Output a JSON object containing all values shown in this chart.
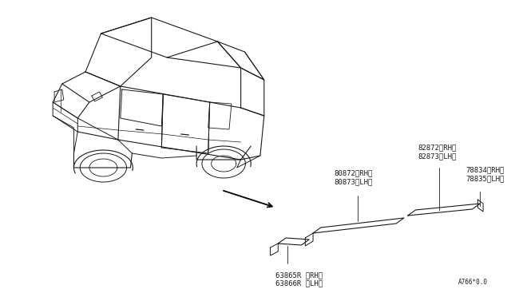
{
  "bg_color": "#ffffff",
  "line_color": "#1a1a1a",
  "text_color": "#1a1a1a",
  "title_text": "A766*0.0",
  "label_82872": "82872〈RH〉\n82873〈LH〉",
  "label_80872": "80872〈RH〉\n80873〈LH〉",
  "label_78834": "78834〈RH〉\n78835〈LH〉",
  "label_63865": "63865R 〈RH〉\n63866R 〈LH〉",
  "font_size": 6.5
}
